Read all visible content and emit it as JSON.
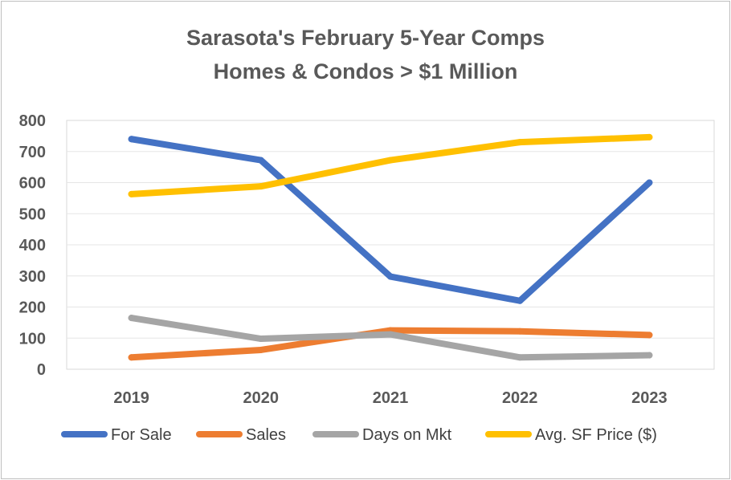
{
  "chart_data": {
    "type": "line",
    "title": "Sarasota's February 5-Year Comps",
    "subtitle": "Homes & Condos > $1 Million",
    "categories": [
      "2019",
      "2020",
      "2021",
      "2022",
      "2023"
    ],
    "ylim": [
      0,
      800
    ],
    "yticks": [
      0,
      100,
      200,
      300,
      400,
      500,
      600,
      700,
      800
    ],
    "grid": true,
    "legend_position": "bottom",
    "series": [
      {
        "name": "For Sale",
        "color": "#4472C4",
        "values": [
          740,
          672,
          298,
          220,
          600
        ]
      },
      {
        "name": "Sales",
        "color": "#ED7D31",
        "values": [
          38,
          62,
          125,
          122,
          110
        ]
      },
      {
        "name": "Days on Mkt",
        "color": "#A5A5A5",
        "values": [
          165,
          98,
          112,
          38,
          45
        ]
      },
      {
        "name": "Avg. SF Price ($)",
        "color": "#FFC000",
        "values": [
          563,
          588,
          672,
          730,
          746
        ]
      }
    ]
  }
}
